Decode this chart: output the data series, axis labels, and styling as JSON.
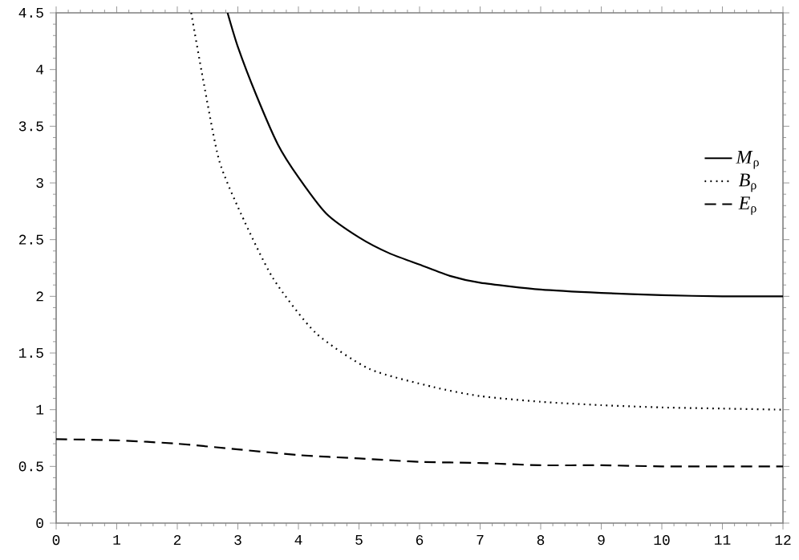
{
  "chart_data": {
    "type": "line",
    "xlim": [
      0,
      12
    ],
    "ylim": [
      0,
      4.5
    ],
    "xticks": [
      0,
      1,
      2,
      3,
      4,
      5,
      6,
      7,
      8,
      9,
      10,
      11,
      12
    ],
    "yticks": [
      0,
      0.5,
      1,
      1.5,
      2,
      2.5,
      3,
      3.5,
      4,
      4.5
    ],
    "legend": "right",
    "marker": "none",
    "grid": false,
    "series": [
      {
        "name": "*M*$_{ρ}$",
        "color": "#000000",
        "line_style": "solid",
        "x": [
          2.83,
          3.0,
          3.3,
          3.66,
          4.0,
          4.46,
          5,
          5.5,
          6,
          6.5,
          7,
          8,
          9,
          10,
          11,
          12
        ],
        "values": [
          4.5,
          4.2,
          3.78,
          3.34,
          3.05,
          2.73,
          2.52,
          2.38,
          2.28,
          2.18,
          2.12,
          2.06,
          2.03,
          2.01,
          2.0,
          2.0
        ]
      },
      {
        "name": "*B*$_{ρ}$",
        "color": "#000000",
        "line_style": "dotted",
        "x": [
          2.23,
          2.43,
          2.69,
          3.05,
          3.58,
          4.28,
          5.17,
          6.23,
          7,
          8,
          9,
          10,
          11,
          12
        ],
        "values": [
          4.5,
          3.9,
          3.2,
          2.73,
          2.16,
          1.68,
          1.36,
          1.2,
          1.12,
          1.07,
          1.04,
          1.02,
          1.01,
          1.0
        ]
      },
      {
        "name": "*E*$_{ρ}$",
        "color": "#000000",
        "line_style": "dashed",
        "x": [
          0,
          1,
          2,
          3,
          4,
          5,
          6,
          7,
          8,
          9,
          10,
          11,
          12
        ],
        "values": [
          0.74,
          0.73,
          0.7,
          0.65,
          0.6,
          0.57,
          0.54,
          0.53,
          0.51,
          0.51,
          0.5,
          0.5,
          0.5
        ]
      }
    ]
  }
}
